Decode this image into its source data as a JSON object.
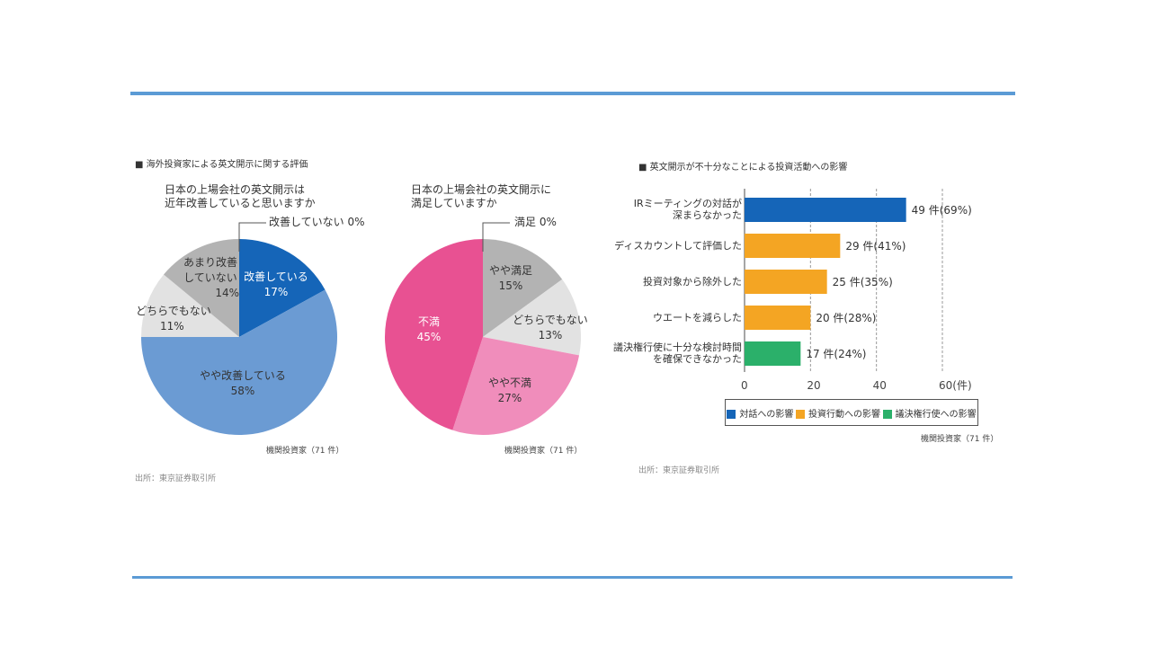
{
  "chart_data": [
    {
      "type": "pie",
      "section_title": "■ 海外投資家による英文開示に関する評価",
      "title_lines": [
        "日本の上場会社の英文開示は",
        "近年改善していると思いますか"
      ],
      "slices": [
        {
          "label": "改善している",
          "value": 17,
          "pct": "17%",
          "color": "#1565b8"
        },
        {
          "label": "やや改善している",
          "value": 58,
          "pct": "58%",
          "color": "#6b9bd3"
        },
        {
          "label": "どちらでもない",
          "value": 11,
          "pct": "11%",
          "color": "#e2e2e2"
        },
        {
          "label": "あまり改善していない",
          "value": 14,
          "pct": "14%",
          "color": "#b3b3b3"
        },
        {
          "label": "改善していない",
          "value": 0,
          "pct": "0%",
          "color": "#888888"
        }
      ],
      "callout": "改善していない 0%",
      "note": "機関投資家（71 件）"
    },
    {
      "type": "pie",
      "title_lines": [
        "日本の上場会社の英文開示に",
        "満足していますか"
      ],
      "slices": [
        {
          "label": "やや満足",
          "value": 15,
          "pct": "15%",
          "color": "#b3b3b3"
        },
        {
          "label": "どちらでもない",
          "value": 13,
          "pct": "13%",
          "color": "#e2e2e2"
        },
        {
          "label": "やや不満",
          "value": 27,
          "pct": "27%",
          "color": "#f08dbb"
        },
        {
          "label": "不満",
          "value": 45,
          "pct": "45%",
          "color": "#e85192"
        },
        {
          "label": "満足",
          "value": 0,
          "pct": "0%",
          "color": "#888888"
        }
      ],
      "callout": "満足 0%",
      "note": "機関投資家（71 件）"
    },
    {
      "type": "bar",
      "orientation": "horizontal",
      "section_title": "■ 英文開示が不十分なことによる投資活動への影響",
      "categories": [
        [
          "IRミーティングの対話が",
          "深まらなかった"
        ],
        [
          "ディスカウントして評価した"
        ],
        [
          "投資対象から除外した"
        ],
        [
          "ウエートを減らした"
        ],
        [
          "議決権行使に十分な検討時間",
          "を確保できなかった"
        ]
      ],
      "values": [
        49,
        29,
        25,
        20,
        17
      ],
      "value_labels": [
        "49 件(69%)",
        "29 件(41%)",
        "25 件(35%)",
        "20 件(28%)",
        "17 件(24%)"
      ],
      "series_index": [
        0,
        1,
        1,
        1,
        2
      ],
      "xlim": [
        0,
        60
      ],
      "xticks": [
        "0",
        "20",
        "40",
        "60(件)"
      ],
      "grid": true,
      "legend": [
        {
          "label": "対話への影響",
          "color": "#1565b8"
        },
        {
          "label": "投資行動への影響",
          "color": "#f4a523"
        },
        {
          "label": "議決権行使への影響",
          "color": "#2bb06a"
        }
      ],
      "legend_position": "bottom",
      "note": "機関投資家（71 件）"
    }
  ],
  "source_left": "出所：東京証券取引所",
  "source_right": "出所：東京証券取引所"
}
